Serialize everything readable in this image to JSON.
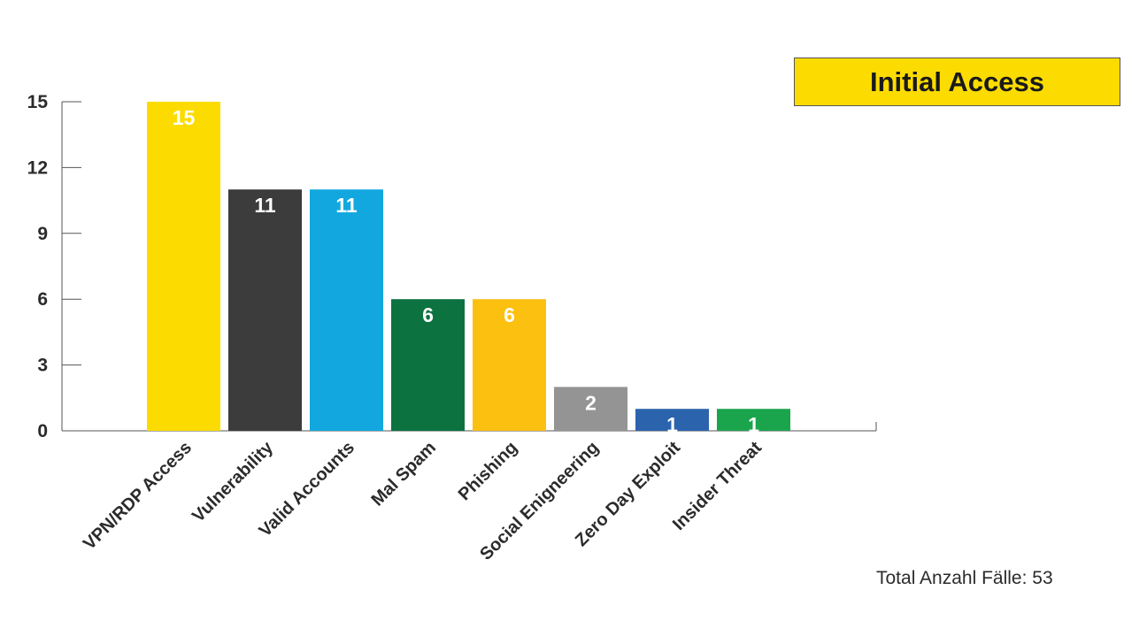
{
  "chart_data": {
    "type": "bar",
    "title": "Initial Access",
    "categories": [
      "VPN/RDP Access",
      "Vulnerability",
      "Valid Accounts",
      "Mal Spam",
      "Phishing",
      "Social Enigneering",
      "Zero Day Exploit",
      "Insider Threat"
    ],
    "values": [
      15,
      11,
      11,
      6,
      6,
      2,
      1,
      1
    ],
    "colors": [
      "#fcdc00",
      "#3c3c3c",
      "#12a8df",
      "#0b7240",
      "#fcc011",
      "#949494",
      "#2c63ad",
      "#1aa54d"
    ],
    "yticks": [
      "0",
      "3",
      "6",
      "9",
      "12",
      "15"
    ],
    "ylim": [
      0,
      15
    ],
    "grid": false,
    "footnote": "Total Anzahl Fälle: 53"
  }
}
